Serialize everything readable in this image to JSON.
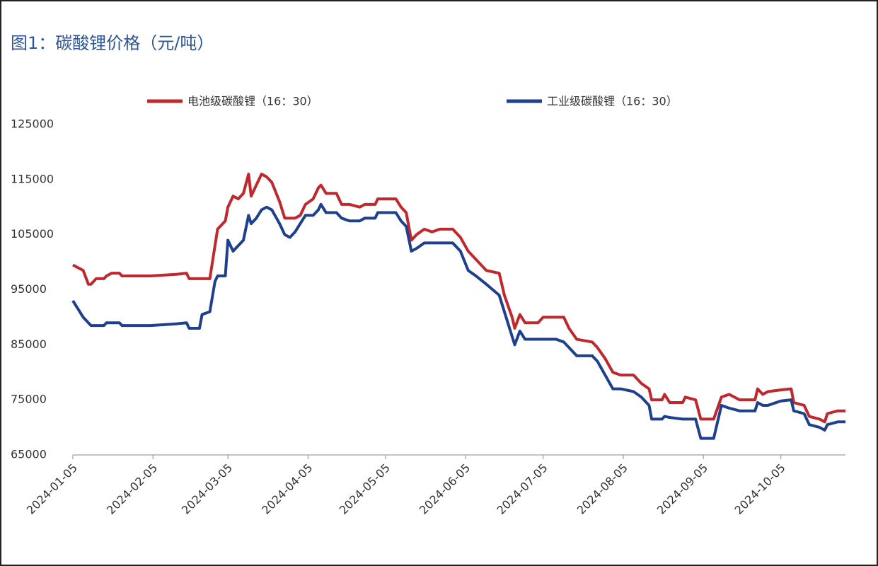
{
  "chart_data": {
    "type": "line",
    "title": "图1：碳酸锂价格（元/吨）",
    "x": [
      "2024-01-05",
      "2024-01-07",
      "2024-01-09",
      "2024-01-11",
      "2024-01-12",
      "2024-01-14",
      "2024-01-17",
      "2024-01-18",
      "2024-01-20",
      "2024-01-23",
      "2024-01-24",
      "2024-02-04",
      "2024-02-14",
      "2024-02-18",
      "2024-02-19",
      "2024-02-23",
      "2024-02-24",
      "2024-02-27",
      "2024-02-29",
      "2024-03-01",
      "2024-03-04",
      "2024-03-05",
      "2024-03-07",
      "2024-03-09",
      "2024-03-11",
      "2024-03-13",
      "2024-03-14",
      "2024-03-16",
      "2024-03-18",
      "2024-03-20",
      "2024-03-22",
      "2024-03-25",
      "2024-03-27",
      "2024-03-29",
      "2024-03-31",
      "2024-04-02",
      "2024-04-04",
      "2024-04-07",
      "2024-04-09",
      "2024-04-10",
      "2024-04-12",
      "2024-04-16",
      "2024-04-18",
      "2024-04-21",
      "2024-04-25",
      "2024-04-27",
      "2024-05-01",
      "2024-05-02",
      "2024-05-09",
      "2024-05-11",
      "2024-05-13",
      "2024-05-15",
      "2024-05-17",
      "2024-05-20",
      "2024-05-23",
      "2024-05-26",
      "2024-05-31",
      "2024-06-03",
      "2024-06-06",
      "2024-06-09",
      "2024-06-13",
      "2024-06-18",
      "2024-06-20",
      "2024-06-23",
      "2024-06-24",
      "2024-06-26",
      "2024-06-28",
      "2024-07-03",
      "2024-07-05",
      "2024-07-10",
      "2024-07-13",
      "2024-07-15",
      "2024-07-18",
      "2024-07-24",
      "2024-07-26",
      "2024-07-29",
      "2024-08-01",
      "2024-08-04",
      "2024-08-09",
      "2024-08-12",
      "2024-08-15",
      "2024-08-16",
      "2024-08-20",
      "2024-08-21",
      "2024-08-23",
      "2024-08-28",
      "2024-08-29",
      "2024-09-02",
      "2024-09-04",
      "2024-09-09",
      "2024-09-12",
      "2024-09-15",
      "2024-09-19",
      "2024-09-25",
      "2024-09-26",
      "2024-09-28",
      "2024-09-30",
      "2024-10-05",
      "2024-10-09",
      "2024-10-10",
      "2024-10-14",
      "2024-10-16",
      "2024-10-20",
      "2024-10-22",
      "2024-10-23",
      "2024-10-27",
      "2024-10-30"
    ],
    "series": [
      {
        "name": "电池级碳酸锂（16：30）",
        "color": "#c0282d",
        "values": [
          99500,
          99000,
          98500,
          96000,
          96000,
          97000,
          97000,
          97500,
          98000,
          98000,
          97500,
          97500,
          97800,
          98000,
          97000,
          97000,
          97000,
          97000,
          103000,
          106000,
          107500,
          110000,
          112000,
          111500,
          112500,
          116000,
          112000,
          114000,
          116000,
          115500,
          114500,
          111000,
          108000,
          108000,
          108000,
          108500,
          110500,
          111500,
          113500,
          114000,
          112500,
          112500,
          110500,
          110500,
          110000,
          110500,
          110500,
          111500,
          111500,
          110000,
          109000,
          104000,
          105000,
          106000,
          105500,
          106000,
          106000,
          104500,
          102000,
          100500,
          98500,
          98000,
          94000,
          90000,
          88000,
          90500,
          89000,
          89000,
          90000,
          90000,
          90000,
          88000,
          86000,
          85500,
          84500,
          82500,
          80000,
          79500,
          79500,
          78000,
          77000,
          75000,
          75000,
          76000,
          74500,
          74500,
          75500,
          75000,
          71500,
          71500,
          75500,
          76000,
          75000,
          75000,
          77000,
          76000,
          76500,
          76800,
          77000,
          74500,
          74000,
          72000,
          71500,
          71000,
          72500,
          73000,
          73000
        ]
      },
      {
        "name": "工业级碳酸锂（16：30）",
        "color": "#1f3f8f",
        "values": [
          93000,
          91500,
          90000,
          89000,
          88500,
          88500,
          88500,
          89000,
          89000,
          89000,
          88500,
          88500,
          88800,
          89000,
          88000,
          88000,
          90500,
          91000,
          96500,
          97500,
          97500,
          104000,
          102000,
          103000,
          104000,
          108500,
          107000,
          108000,
          109500,
          110000,
          109500,
          107000,
          105000,
          104500,
          105500,
          107000,
          108500,
          108500,
          109500,
          110500,
          109000,
          109000,
          108000,
          107500,
          107500,
          108000,
          108000,
          109000,
          109000,
          107500,
          106500,
          102000,
          102500,
          103500,
          103500,
          103500,
          103500,
          102000,
          98500,
          97500,
          96000,
          94000,
          91000,
          86500,
          85000,
          87500,
          86000,
          86000,
          86000,
          86000,
          85500,
          84500,
          83000,
          83000,
          82000,
          79500,
          77000,
          77000,
          76500,
          75500,
          74000,
          71500,
          71500,
          72000,
          71800,
          71500,
          71500,
          71500,
          68000,
          68000,
          74000,
          73500,
          73000,
          73000,
          74500,
          74000,
          74000,
          74800,
          75000,
          73000,
          72500,
          70500,
          70000,
          69500,
          70500,
          71000,
          71000
        ]
      }
    ],
    "xlim": [
      "2024-01-05",
      "2024-10-30"
    ],
    "xticks": [
      "2024-01-05",
      "2024-02-05",
      "2024-03-05",
      "2024-04-05",
      "2024-05-05",
      "2024-06-05",
      "2024-07-05",
      "2024-08-05",
      "2024-09-05",
      "2024-10-05"
    ],
    "ylim": [
      65000,
      125000
    ],
    "yticks": [
      65000,
      75000,
      85000,
      95000,
      105000,
      115000,
      125000
    ],
    "grid": false
  }
}
